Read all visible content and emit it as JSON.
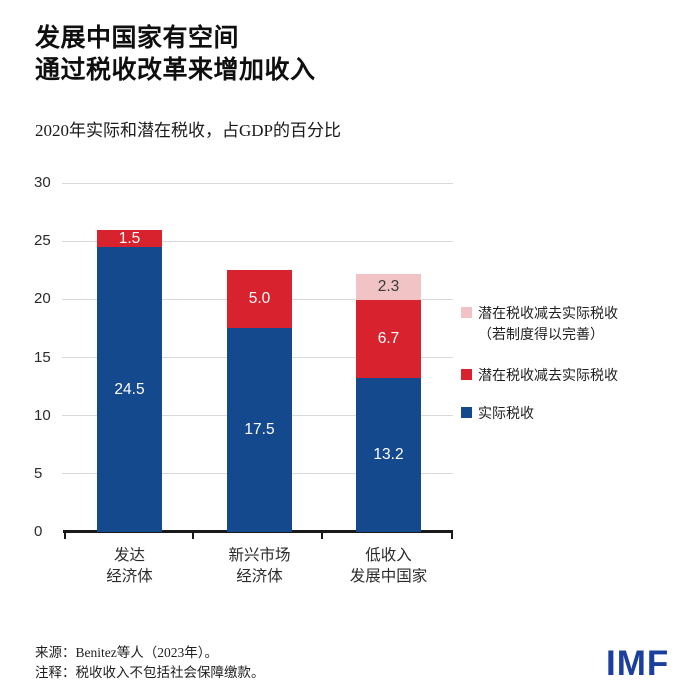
{
  "header": {
    "title_line1": "发展中国家有空间",
    "title_line2": "通过税收改革来增加收入"
  },
  "subtitle": "2020年实际和潜在税收，占GDP的百分比",
  "chart_data": {
    "type": "bar",
    "stacked": true,
    "title": "2020年实际和潜在税收，占GDP的百分比",
    "categories": [
      "发达经济体",
      "新兴市场经济体",
      "低收入发展中国家"
    ],
    "category_lines": [
      [
        "发达",
        "经济体"
      ],
      [
        "新兴市场",
        "经济体"
      ],
      [
        "低收入",
        "发展中国家"
      ]
    ],
    "series": [
      {
        "key": "actual-tax",
        "name": "实际税收",
        "color": "#15498e",
        "label_color": "#ffffff",
        "values": [
          24.5,
          17.5,
          13.2
        ],
        "labels": [
          "24.5",
          "17.5",
          "13.2"
        ]
      },
      {
        "key": "potential-minus-actual",
        "name": "潜在税收减去实际税收",
        "color": "#d8232e",
        "label_color": "#ffffff",
        "values": [
          1.5,
          5.0,
          6.7
        ],
        "labels": [
          "1.5",
          "5.0",
          "6.7"
        ]
      },
      {
        "key": "potential-minus-actual-improved",
        "name": "潜在税收减去实际税收（若制度得以完善）",
        "color": "#f2c3c4",
        "label_color": "#3a3a3a",
        "values": [
          0,
          0,
          2.3
        ],
        "labels": [
          "",
          "",
          "2.3"
        ]
      }
    ],
    "xlabel": "",
    "ylabel": "",
    "ylim": [
      0,
      30
    ],
    "yticks": [
      0,
      5,
      10,
      15,
      20,
      25,
      30
    ],
    "grid": true,
    "legend_position": "right"
  },
  "legend": {
    "items": [
      {
        "key": "potential-minus-actual-improved",
        "color": "#f2c3c4",
        "lines": [
          "潜在税收减去实际税收",
          "（若制度得以完善）"
        ]
      },
      {
        "key": "potential-minus-actual",
        "color": "#d8232e",
        "lines": [
          "潜在税收减去实际税收"
        ]
      },
      {
        "key": "actual-tax",
        "color": "#15498e",
        "lines": [
          "实际税收"
        ]
      }
    ]
  },
  "footer": {
    "source": "来源：Benitez等人（2023年）。",
    "note": "注释：税收收入不包括社会保障缴款。",
    "logo": "IMF",
    "logo_color": "#1a3f9d"
  }
}
